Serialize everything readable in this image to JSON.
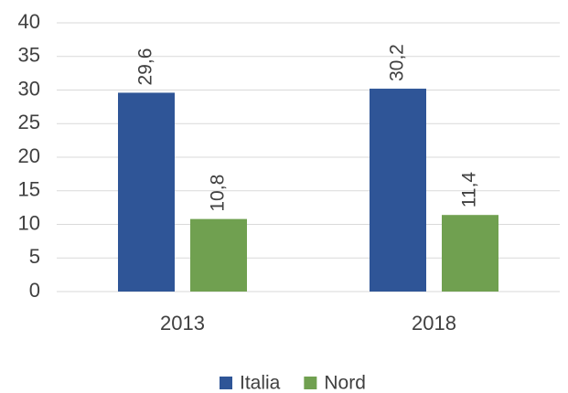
{
  "chart_data": {
    "type": "bar",
    "categories": [
      "2013",
      "2018"
    ],
    "series": [
      {
        "name": "Italia",
        "color": "#2f5597",
        "values": [
          29.6,
          30.2
        ],
        "value_labels": [
          "29,6",
          "30,2"
        ]
      },
      {
        "name": "Nord",
        "color": "#70a050",
        "values": [
          10.8,
          11.4
        ],
        "value_labels": [
          "10,8",
          "11,4"
        ]
      }
    ],
    "ylim": [
      0,
      40
    ],
    "yticks": [
      0,
      5,
      10,
      15,
      20,
      25,
      30,
      35,
      40
    ],
    "grid": true,
    "legend": "bottom"
  }
}
